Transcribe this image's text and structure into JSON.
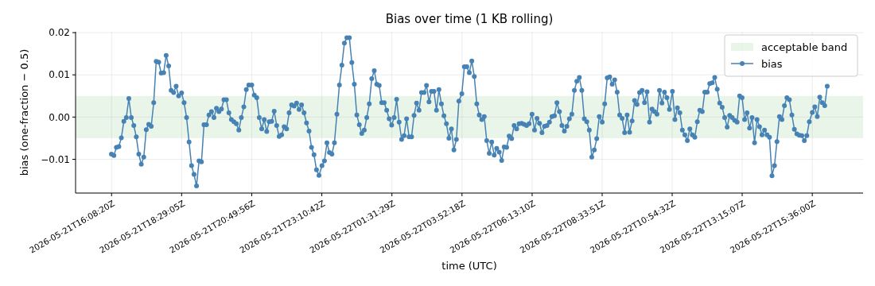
{
  "chart_data": {
    "type": "line",
    "title": "Bias over time (1 KB rolling)",
    "xlabel": "time (UTC)",
    "ylabel": "bias (one-fraction − 0.5)",
    "xlim": [
      "2026-05-21T14:56",
      "2026-05-22T17:18"
    ],
    "xticks": [
      {
        "value": "2026-05-21T16:08:20",
        "label": "2026-05-21T16:08:20Z"
      },
      {
        "value": "2026-05-21T18:29:05",
        "label": "2026-05-21T18:29:05Z"
      },
      {
        "value": "2026-05-21T20:49:56",
        "label": "2026-05-21T20:49:56Z"
      },
      {
        "value": "2026-05-21T23:10:42",
        "label": "2026-05-21T23:10:42Z"
      },
      {
        "value": "2026-05-22T01:31:29",
        "label": "2026-05-22T01:31:29Z"
      },
      {
        "value": "2026-05-22T03:52:18",
        "label": "2026-05-22T03:52:18Z"
      },
      {
        "value": "2026-05-22T06:13:10",
        "label": "2026-05-22T06:13:10Z"
      },
      {
        "value": "2026-05-22T08:33:51",
        "label": "2026-05-22T08:33:51Z"
      },
      {
        "value": "2026-05-22T10:54:32",
        "label": "2026-05-22T10:54:32Z"
      },
      {
        "value": "2026-05-22T13:15:07",
        "label": "2026-05-22T13:15:07Z"
      },
      {
        "value": "2026-05-22T15:36:00",
        "label": "2026-05-22T15:36:00Z"
      }
    ],
    "ylim": [
      -0.018,
      0.0202
    ],
    "yticks": [
      {
        "value": -0.01,
        "label": "−0.01"
      },
      {
        "value": 0,
        "label": "0.00"
      },
      {
        "value": 0.01,
        "label": "0.01"
      },
      {
        "value": 0.02,
        "label": "0.02"
      }
    ],
    "grid": true,
    "legend": "top right",
    "marker": "circle",
    "bands": [
      {
        "axis": "y",
        "from": -0.005,
        "to": 0.005,
        "label": "acceptable band",
        "color": "#2ca02c"
      }
    ],
    "series": [
      {
        "name": "bias",
        "color": "#4682b4",
        "x": [
          "2026-05-21T16:08",
          "2026-05-21T16:13",
          "2026-05-21T16:18",
          "2026-05-21T16:23",
          "2026-05-21T16:28",
          "2026-05-21T16:33",
          "2026-05-21T16:38",
          "2026-05-21T16:43",
          "2026-05-21T16:48",
          "2026-05-21T16:53",
          "2026-05-21T16:58",
          "2026-05-21T17:03",
          "2026-05-21T17:08",
          "2026-05-21T17:13",
          "2026-05-21T17:18",
          "2026-05-21T17:23",
          "2026-05-21T17:28",
          "2026-05-21T17:33",
          "2026-05-21T17:38",
          "2026-05-21T17:43",
          "2026-05-21T17:48",
          "2026-05-21T17:53",
          "2026-05-21T17:58",
          "2026-05-21T18:03",
          "2026-05-21T18:08",
          "2026-05-21T18:13",
          "2026-05-21T18:18",
          "2026-05-21T18:23",
          "2026-05-21T18:29",
          "2026-05-21T18:34",
          "2026-05-21T18:39",
          "2026-05-21T18:44",
          "2026-05-21T18:49",
          "2026-05-21T18:54",
          "2026-05-21T18:59",
          "2026-05-21T19:04",
          "2026-05-21T19:09",
          "2026-05-21T19:14",
          "2026-05-21T19:19",
          "2026-05-21T19:24",
          "2026-05-21T19:29",
          "2026-05-21T19:34",
          "2026-05-21T19:39",
          "2026-05-21T19:44",
          "2026-05-21T19:49",
          "2026-05-21T19:54",
          "2026-05-21T19:59",
          "2026-05-21T20:04",
          "2026-05-21T20:09",
          "2026-05-21T20:14",
          "2026-05-21T20:19",
          "2026-05-21T20:24",
          "2026-05-21T20:29",
          "2026-05-21T20:34",
          "2026-05-21T20:39",
          "2026-05-21T20:44",
          "2026-05-21T20:50",
          "2026-05-21T20:55",
          "2026-05-21T21:00",
          "2026-05-21T21:05",
          "2026-05-21T21:10",
          "2026-05-21T21:15",
          "2026-05-21T21:20",
          "2026-05-21T21:25",
          "2026-05-21T21:30",
          "2026-05-21T21:35",
          "2026-05-21T21:40",
          "2026-05-21T21:45",
          "2026-05-21T21:50",
          "2026-05-21T21:55",
          "2026-05-21T22:00",
          "2026-05-21T22:05",
          "2026-05-21T22:10",
          "2026-05-21T22:15",
          "2026-05-21T22:20",
          "2026-05-21T22:25",
          "2026-05-21T22:30",
          "2026-05-21T22:35",
          "2026-05-21T22:40",
          "2026-05-21T22:45",
          "2026-05-21T22:50",
          "2026-05-21T22:55",
          "2026-05-21T23:00",
          "2026-05-21T23:05",
          "2026-05-21T23:11",
          "2026-05-21T23:16",
          "2026-05-21T23:21",
          "2026-05-21T23:26",
          "2026-05-21T23:31",
          "2026-05-21T23:36",
          "2026-05-21T23:41",
          "2026-05-21T23:46",
          "2026-05-21T23:51",
          "2026-05-21T23:56",
          "2026-05-22T00:01",
          "2026-05-22T00:06",
          "2026-05-22T00:11",
          "2026-05-22T00:16",
          "2026-05-22T00:21",
          "2026-05-22T00:26",
          "2026-05-22T00:31",
          "2026-05-22T00:36",
          "2026-05-22T00:41",
          "2026-05-22T00:46",
          "2026-05-22T00:51",
          "2026-05-22T00:56",
          "2026-05-22T01:01",
          "2026-05-22T01:06",
          "2026-05-22T01:11",
          "2026-05-22T01:16",
          "2026-05-22T01:21",
          "2026-05-22T01:26",
          "2026-05-22T01:31",
          "2026-05-22T01:36",
          "2026-05-22T01:41",
          "2026-05-22T01:46",
          "2026-05-22T01:51",
          "2026-05-22T01:56",
          "2026-05-22T02:01",
          "2026-05-22T02:06",
          "2026-05-22T02:11",
          "2026-05-22T02:16",
          "2026-05-22T02:21",
          "2026-05-22T02:26",
          "2026-05-22T02:31",
          "2026-05-22T02:36",
          "2026-05-22T02:41",
          "2026-05-22T02:46",
          "2026-05-22T02:51",
          "2026-05-22T02:56",
          "2026-05-22T03:01",
          "2026-05-22T03:06",
          "2026-05-22T03:11",
          "2026-05-22T03:16",
          "2026-05-22T03:21",
          "2026-05-22T03:26",
          "2026-05-22T03:31",
          "2026-05-22T03:36",
          "2026-05-22T03:41",
          "2026-05-22T03:46",
          "2026-05-22T03:52",
          "2026-05-22T03:57",
          "2026-05-22T04:02",
          "2026-05-22T04:07",
          "2026-05-22T04:12",
          "2026-05-22T04:17",
          "2026-05-22T04:22",
          "2026-05-22T04:27",
          "2026-05-22T04:32",
          "2026-05-22T04:37",
          "2026-05-22T04:42",
          "2026-05-22T04:47",
          "2026-05-22T04:52",
          "2026-05-22T04:57",
          "2026-05-22T05:02",
          "2026-05-22T05:07",
          "2026-05-22T05:12",
          "2026-05-22T05:17",
          "2026-05-22T05:22",
          "2026-05-22T05:27",
          "2026-05-22T05:32",
          "2026-05-22T05:37",
          "2026-05-22T05:42",
          "2026-05-22T05:47",
          "2026-05-22T05:52",
          "2026-05-22T05:57",
          "2026-05-22T06:02",
          "2026-05-22T06:07",
          "2026-05-22T06:13",
          "2026-05-22T06:18",
          "2026-05-22T06:23",
          "2026-05-22T06:28",
          "2026-05-22T06:33",
          "2026-05-22T06:38",
          "2026-05-22T06:43",
          "2026-05-22T06:48",
          "2026-05-22T06:53",
          "2026-05-22T06:58",
          "2026-05-22T07:03",
          "2026-05-22T07:08",
          "2026-05-22T07:13",
          "2026-05-22T07:18",
          "2026-05-22T07:23",
          "2026-05-22T07:28",
          "2026-05-22T07:33",
          "2026-05-22T07:38",
          "2026-05-22T07:43",
          "2026-05-22T07:48",
          "2026-05-22T07:53",
          "2026-05-22T07:58",
          "2026-05-22T08:03",
          "2026-05-22T08:08",
          "2026-05-22T08:13",
          "2026-05-22T08:18",
          "2026-05-22T08:23",
          "2026-05-22T08:28",
          "2026-05-22T08:34",
          "2026-05-22T08:39",
          "2026-05-22T08:44",
          "2026-05-22T08:49",
          "2026-05-22T08:54",
          "2026-05-22T08:59",
          "2026-05-22T09:04",
          "2026-05-22T09:09",
          "2026-05-22T09:14",
          "2026-05-22T09:19",
          "2026-05-22T09:24",
          "2026-05-22T09:29",
          "2026-05-22T09:34",
          "2026-05-22T09:39",
          "2026-05-22T09:44",
          "2026-05-22T09:49",
          "2026-05-22T09:54",
          "2026-05-22T09:59",
          "2026-05-22T10:04",
          "2026-05-22T10:09",
          "2026-05-22T10:14",
          "2026-05-22T10:19",
          "2026-05-22T10:24",
          "2026-05-22T10:29",
          "2026-05-22T10:34",
          "2026-05-22T10:39",
          "2026-05-22T10:44",
          "2026-05-22T10:49",
          "2026-05-22T10:55",
          "2026-05-22T11:00",
          "2026-05-22T11:05",
          "2026-05-22T11:10",
          "2026-05-22T11:15",
          "2026-05-22T11:20",
          "2026-05-22T11:25",
          "2026-05-22T11:30",
          "2026-05-22T11:35",
          "2026-05-22T11:40",
          "2026-05-22T11:45",
          "2026-05-22T11:50",
          "2026-05-22T11:55",
          "2026-05-22T12:00",
          "2026-05-22T12:05",
          "2026-05-22T12:10",
          "2026-05-22T12:15",
          "2026-05-22T12:20",
          "2026-05-22T12:25",
          "2026-05-22T12:30",
          "2026-05-22T12:35",
          "2026-05-22T12:40",
          "2026-05-22T12:45",
          "2026-05-22T12:50",
          "2026-05-22T12:55",
          "2026-05-22T13:00",
          "2026-05-22T13:05",
          "2026-05-22T13:10",
          "2026-05-22T13:15",
          "2026-05-22T13:20",
          "2026-05-22T13:25",
          "2026-05-22T13:30",
          "2026-05-22T13:35",
          "2026-05-22T13:40",
          "2026-05-22T13:45",
          "2026-05-22T13:50",
          "2026-05-22T13:55",
          "2026-05-22T14:00",
          "2026-05-22T14:05",
          "2026-05-22T14:10",
          "2026-05-22T14:15",
          "2026-05-22T14:20",
          "2026-05-22T14:25",
          "2026-05-22T14:30",
          "2026-05-22T14:35",
          "2026-05-22T14:40",
          "2026-05-22T14:45",
          "2026-05-22T14:50",
          "2026-05-22T14:55",
          "2026-05-22T15:00",
          "2026-05-22T15:05",
          "2026-05-22T15:10",
          "2026-05-22T15:15",
          "2026-05-22T15:20",
          "2026-05-22T15:25",
          "2026-05-22T15:30",
          "2026-05-22T15:36",
          "2026-05-22T15:41",
          "2026-05-22T15:46",
          "2026-05-22T15:51",
          "2026-05-22T15:56",
          "2026-05-22T16:01",
          "2026-05-22T16:06"
        ],
        "values": [
          -0.0088,
          -0.0091,
          -0.0072,
          -0.007,
          -0.0049,
          -0.001,
          -0.0001,
          0.0044,
          -0.0001,
          -0.002,
          -0.0047,
          -0.0088,
          -0.0112,
          -0.0095,
          -0.003,
          -0.0017,
          -0.0022,
          0.0034,
          0.0132,
          0.013,
          0.0104,
          0.0105,
          0.0146,
          0.0121,
          0.0063,
          0.0058,
          0.0073,
          0.005,
          0.0057,
          0.0034,
          -0.0001,
          -0.0059,
          -0.0115,
          -0.0136,
          -0.0163,
          -0.0104,
          -0.0106,
          -0.0018,
          -0.0018,
          0.0005,
          0.0013,
          -0.0001,
          0.0021,
          0.0013,
          0.0019,
          0.0041,
          0.0041,
          0.001,
          -0.0006,
          -0.0011,
          -0.0016,
          -0.0031,
          -0.0001,
          0.0024,
          0.0065,
          0.0076,
          0.0076,
          0.0052,
          0.0046,
          -0.0001,
          -0.0028,
          -0.0006,
          -0.0034,
          -0.0011,
          -0.001,
          0.0014,
          -0.002,
          -0.0046,
          -0.0042,
          -0.0023,
          -0.0028,
          0.001,
          0.0029,
          0.0026,
          0.0033,
          0.0018,
          0.0029,
          0.001,
          -0.0014,
          -0.0033,
          -0.0072,
          -0.0089,
          -0.0125,
          -0.0138,
          -0.0115,
          -0.0104,
          -0.0061,
          -0.0084,
          -0.0088,
          -0.0061,
          0.0007,
          0.0076,
          0.0123,
          0.0175,
          0.0188,
          0.0188,
          0.0129,
          0.0078,
          0.0005,
          -0.0018,
          -0.0039,
          -0.0031,
          -0.0001,
          0.0031,
          0.0091,
          0.011,
          0.0078,
          0.0075,
          0.0034,
          0.0034,
          0.0016,
          -0.0004,
          -0.0019,
          -0.0001,
          0.0042,
          -0.0012,
          -0.0053,
          -0.0044,
          -0.0004,
          -0.0047,
          -0.0047,
          0.0004,
          0.0033,
          0.0016,
          0.0058,
          0.0058,
          0.0075,
          0.0036,
          0.0061,
          0.0061,
          0.0016,
          0.0065,
          0.0031,
          0.0003,
          -0.0016,
          -0.005,
          -0.0028,
          -0.0078,
          -0.0053,
          0.0038,
          0.0055,
          0.0119,
          0.0119,
          0.0105,
          0.0133,
          0.0096,
          0.0031,
          0.0005,
          -0.0006,
          0.0001,
          -0.0056,
          -0.0086,
          -0.0059,
          -0.009,
          -0.0074,
          -0.0083,
          -0.0103,
          -0.0071,
          -0.0072,
          -0.0045,
          -0.0051,
          -0.002,
          -0.0028,
          -0.0016,
          -0.0015,
          -0.0017,
          -0.002,
          -0.0016,
          0.0007,
          -0.0031,
          -0.0003,
          -0.0015,
          -0.0037,
          -0.0022,
          -0.002,
          -0.0012,
          0.0001,
          0.0003,
          0.0034,
          0.0013,
          -0.002,
          -0.0033,
          -0.0022,
          -0.0004,
          0.0007,
          0.0063,
          0.0085,
          0.0094,
          0.0063,
          -0.0004,
          -0.0011,
          -0.0031,
          -0.0095,
          -0.0078,
          -0.0051,
          0.0001,
          -0.0012,
          0.0031,
          0.0093,
          0.0095,
          0.0078,
          0.0088,
          0.0059,
          0.0005,
          -0.0003,
          -0.0037,
          0.0005,
          -0.0036,
          -0.0009,
          0.0039,
          0.003,
          0.0058,
          0.0063,
          0.0034,
          0.006,
          -0.0012,
          0.0019,
          0.0013,
          0.0007,
          0.0063,
          0.0033,
          0.0059,
          0.0046,
          0.0018,
          0.0061,
          -0.0006,
          0.0022,
          0.001,
          -0.0031,
          -0.0042,
          -0.0056,
          -0.0028,
          -0.0042,
          -0.0048,
          -0.0011,
          0.0016,
          0.0013,
          0.0059,
          0.0059,
          0.0079,
          0.0081,
          0.0094,
          0.0066,
          0.0033,
          0.0023,
          -0.0001,
          -0.0024,
          0.0004,
          -0.0001,
          -0.0008,
          -0.0012,
          0.005,
          0.0046,
          -0.0006,
          0.001,
          -0.0026,
          -0.0001,
          -0.0061,
          -0.0006,
          -0.0023,
          -0.0042,
          -0.0031,
          -0.0042,
          -0.0048,
          -0.0139,
          -0.0115,
          -0.0058,
          0.0001,
          -0.0006,
          0.0027,
          0.0046,
          0.0041,
          0.0005,
          -0.0029,
          -0.004,
          -0.0043,
          -0.0044,
          -0.0056,
          -0.0044,
          -0.0011,
          0.0011,
          0.0024,
          0.0001,
          0.0047,
          0.0034,
          0.0027,
          0.0073
        ]
      }
    ]
  }
}
